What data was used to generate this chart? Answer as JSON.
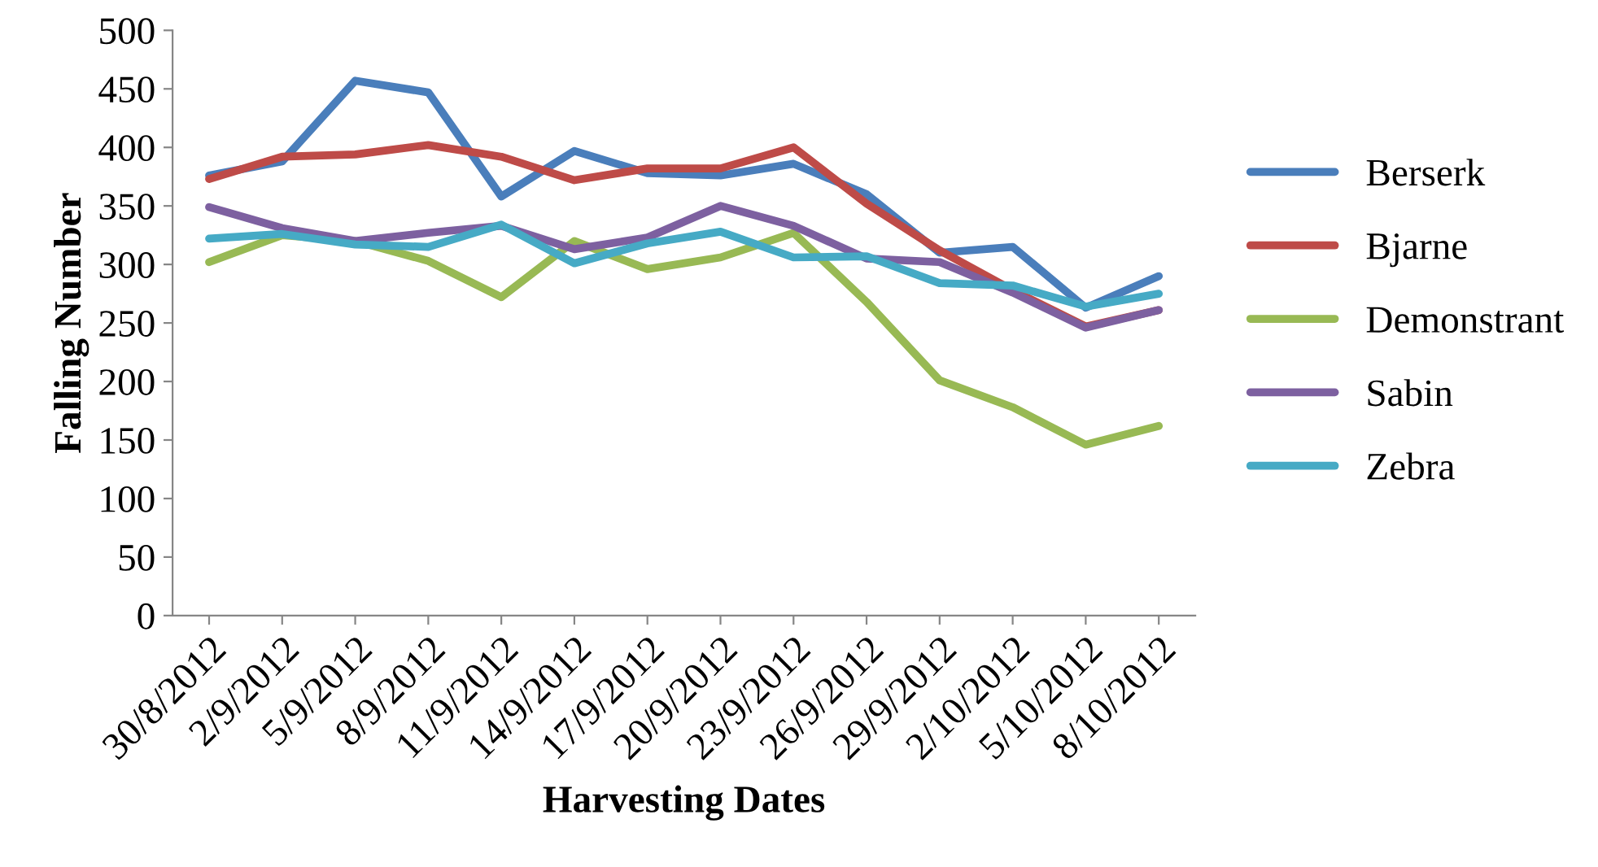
{
  "chart_data": {
    "type": "line",
    "xlabel": "Harvesting Dates",
    "ylabel": "Falling Number",
    "categories": [
      "30/8/2012",
      "2/9/2012",
      "5/9/2012",
      "8/9/2012",
      "11/9/2012",
      "14/9/2012",
      "17/9/2012",
      "20/9/2012",
      "23/9/2012",
      "26/9/2012",
      "29/9/2012",
      "2/10/2012",
      "5/10/2012",
      "8/10/2012"
    ],
    "series": [
      {
        "name": "Berserk",
        "color": "#4a7ebb",
        "values": [
          376,
          388,
          457,
          447,
          358,
          397,
          378,
          376,
          386,
          360,
          310,
          315,
          263,
          290
        ]
      },
      {
        "name": "Bjarne",
        "color": "#be4b48",
        "values": [
          373,
          392,
          394,
          402,
          392,
          372,
          382,
          382,
          400,
          352,
          312,
          278,
          247,
          261
        ]
      },
      {
        "name": "Demonstrant",
        "color": "#98b954",
        "values": [
          302,
          325,
          320,
          303,
          272,
          320,
          296,
          306,
          327,
          268,
          201,
          178,
          146,
          162
        ]
      },
      {
        "name": "Sabin",
        "color": "#7d60a0",
        "values": [
          349,
          331,
          320,
          327,
          333,
          313,
          323,
          350,
          333,
          305,
          302,
          276,
          246,
          261
        ]
      },
      {
        "name": "Zebra",
        "color": "#46aac5",
        "values": [
          322,
          326,
          317,
          315,
          334,
          301,
          318,
          328,
          306,
          307,
          284,
          282,
          264,
          275
        ]
      }
    ],
    "ylim": [
      0,
      500
    ],
    "yticks": [
      0,
      50,
      100,
      150,
      200,
      250,
      300,
      350,
      400,
      450,
      500
    ],
    "grid": false,
    "legend": "right",
    "marker": "none",
    "line_style": "solid"
  }
}
